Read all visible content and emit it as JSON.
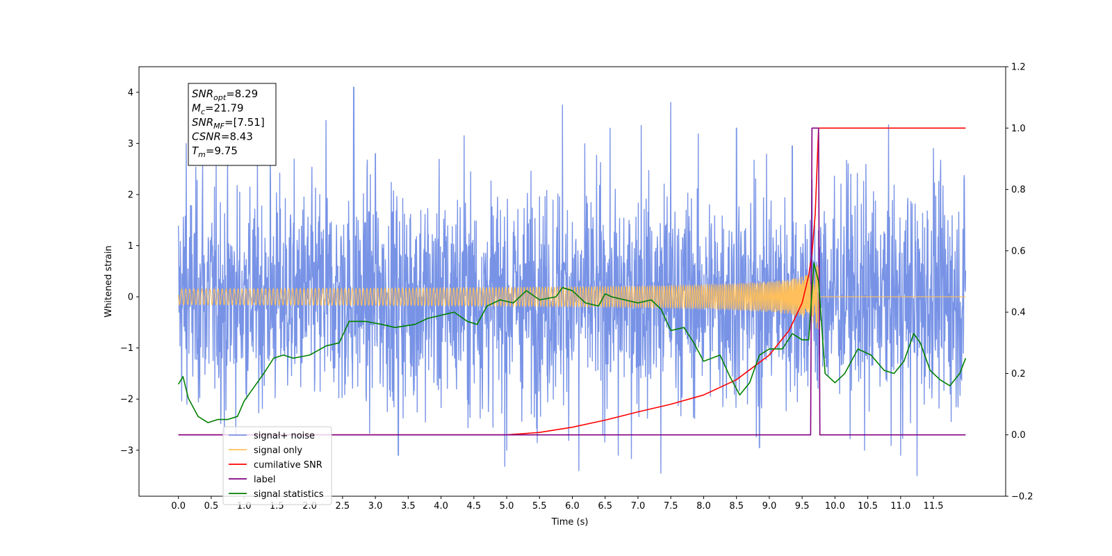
{
  "chart_data": {
    "type": "line",
    "xlabel": "Time (s)",
    "ylabel_left": "Whitened strain",
    "ylabel_right": "",
    "xlim": [
      -0.6,
      12.6
    ],
    "ylim_left": [
      -3.9,
      4.5
    ],
    "ylim_right": [
      -0.2,
      1.2
    ],
    "x_ticks": [
      0.0,
      0.5,
      1.0,
      1.5,
      2.0,
      2.5,
      3.0,
      3.5,
      4.0,
      4.5,
      5.0,
      5.5,
      6.0,
      6.5,
      7.0,
      7.5,
      8.0,
      8.5,
      9.0,
      9.5,
      10.0,
      10.5,
      11.0,
      11.5
    ],
    "x_tick_labels": [
      "0.0",
      "0.5",
      "1.0",
      "1.5",
      "2.0",
      "2.5",
      "3.0",
      "3.5",
      "4.0",
      "4.5",
      "5.0",
      "5.5",
      "6.0",
      "6.5",
      "7.0",
      "7.5",
      "8.0",
      "8.5",
      "9.0",
      "9.5",
      "10.0",
      "10.5",
      "11.0",
      "11.5"
    ],
    "y_ticks_left": [
      -3,
      -2,
      -1,
      0,
      1,
      2,
      3,
      4
    ],
    "y_tick_labels_left": [
      "−3",
      "−2",
      "−1",
      "0",
      "1",
      "2",
      "3",
      "4"
    ],
    "y_ticks_right": [
      -0.2,
      0.0,
      0.2,
      0.4,
      0.6,
      0.8,
      1.0,
      1.2
    ],
    "y_tick_labels_right": [
      "−0.2",
      "0.0",
      "0.2",
      "0.4",
      "0.6",
      "0.8",
      "1.0",
      "1.2"
    ],
    "grid": false,
    "legend_placement": "lower-left",
    "annotation": {
      "lines": [
        {
          "main": "SNR",
          "sub": "opt",
          "value": "=8.29"
        },
        {
          "main": "M",
          "sub": "c",
          "value": "=21.79"
        },
        {
          "main": "SNR",
          "sub": "MF",
          "value": "=[7.51]"
        },
        {
          "main": "CSNR",
          "sub": "",
          "value": "=8.43"
        },
        {
          "main": "T",
          "sub": "m",
          "value": "=9.75"
        }
      ]
    },
    "series": [
      {
        "name": "signal+ noise",
        "axis": "left",
        "color": "#7893e6",
        "style": "noise",
        "x_range": [
          0.0,
          11.99
        ],
        "typical_band": [
          -1.6,
          1.6
        ],
        "peaks_high": [
          [
            0.12,
            3.0
          ],
          [
            0.37,
            2.7
          ],
          [
            1.4,
            2.75
          ],
          [
            2.25,
            3.45
          ],
          [
            2.67,
            4.1
          ],
          [
            3.0,
            2.8
          ],
          [
            4.35,
            3.15
          ],
          [
            5.85,
            3.75
          ],
          [
            7.05,
            3.35
          ],
          [
            7.5,
            3.8
          ],
          [
            8.5,
            3.3
          ],
          [
            9.35,
            2.95
          ],
          [
            10.2,
            2.6
          ],
          [
            11.5,
            2.9
          ]
        ],
        "peaks_low": [
          [
            0.7,
            -2.7
          ],
          [
            3.35,
            -3.1
          ],
          [
            5.0,
            -3.0
          ],
          [
            6.1,
            -3.4
          ],
          [
            6.7,
            -3.1
          ],
          [
            7.35,
            -3.45
          ],
          [
            8.85,
            -2.95
          ],
          [
            10.45,
            -3.0
          ],
          [
            11.0,
            -3.1
          ],
          [
            11.25,
            -3.5
          ]
        ]
      },
      {
        "name": "signal only",
        "axis": "left",
        "color": "#ffbf5a",
        "style": "chirp",
        "x_range": [
          0.0,
          11.99
        ],
        "merger_time": 9.75,
        "peak_amplitude": 1.1
      },
      {
        "name": "cumilative SNR",
        "axis": "right",
        "color": "#ff0000",
        "x": [
          0.0,
          5.0,
          5.5,
          6.0,
          6.5,
          7.0,
          7.5,
          8.0,
          8.5,
          9.0,
          9.3,
          9.5,
          9.6,
          9.65,
          9.7,
          9.75,
          11.99
        ],
        "y": [
          0.0,
          0.0,
          0.008,
          0.025,
          0.048,
          0.075,
          0.1,
          0.13,
          0.18,
          0.26,
          0.34,
          0.43,
          0.52,
          0.59,
          0.72,
          1.0,
          1.0
        ]
      },
      {
        "name": "label",
        "axis": "right",
        "color": "#800080",
        "x": [
          0.0,
          9.63,
          9.65,
          9.75,
          9.77,
          11.99
        ],
        "y": [
          0.0,
          0.0,
          1.0,
          1.0,
          0.0,
          0.0
        ]
      },
      {
        "name": "signal statistics",
        "axis": "right",
        "color": "#008000",
        "x": [
          0.0,
          0.07,
          0.15,
          0.3,
          0.45,
          0.6,
          0.75,
          0.9,
          1.0,
          1.1,
          1.2,
          1.3,
          1.45,
          1.6,
          1.75,
          2.0,
          2.25,
          2.45,
          2.6,
          2.85,
          3.1,
          3.3,
          3.6,
          3.8,
          4.0,
          4.2,
          4.4,
          4.55,
          4.7,
          4.9,
          5.1,
          5.3,
          5.5,
          5.75,
          5.85,
          6.0,
          6.2,
          6.4,
          6.5,
          6.6,
          6.8,
          7.0,
          7.2,
          7.35,
          7.5,
          7.7,
          7.85,
          8.0,
          8.25,
          8.4,
          8.55,
          8.7,
          8.85,
          9.0,
          9.2,
          9.35,
          9.5,
          9.6,
          9.68,
          9.75,
          9.85,
          10.0,
          10.15,
          10.35,
          10.55,
          10.75,
          10.9,
          11.05,
          11.2,
          11.3,
          11.45,
          11.6,
          11.75,
          11.9,
          11.99
        ],
        "y": [
          0.165,
          0.19,
          0.12,
          0.06,
          0.04,
          0.05,
          0.05,
          0.06,
          0.11,
          0.14,
          0.17,
          0.2,
          0.25,
          0.26,
          0.25,
          0.26,
          0.29,
          0.3,
          0.37,
          0.37,
          0.36,
          0.35,
          0.36,
          0.38,
          0.39,
          0.4,
          0.37,
          0.36,
          0.42,
          0.44,
          0.43,
          0.47,
          0.44,
          0.45,
          0.48,
          0.47,
          0.43,
          0.42,
          0.46,
          0.45,
          0.44,
          0.43,
          0.44,
          0.41,
          0.34,
          0.35,
          0.3,
          0.24,
          0.26,
          0.19,
          0.13,
          0.17,
          0.26,
          0.28,
          0.28,
          0.33,
          0.31,
          0.31,
          0.56,
          0.5,
          0.2,
          0.17,
          0.2,
          0.28,
          0.26,
          0.21,
          0.2,
          0.24,
          0.33,
          0.3,
          0.21,
          0.18,
          0.16,
          0.2,
          0.25
        ]
      }
    ]
  }
}
